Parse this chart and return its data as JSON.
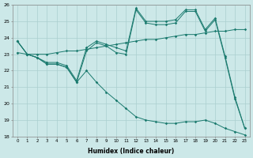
{
  "xlabel": "Humidex (Indice chaleur)",
  "ylabel": "",
  "xlim": [
    -0.5,
    23.5
  ],
  "ylim": [
    18,
    26
  ],
  "yticks": [
    18,
    19,
    20,
    21,
    22,
    23,
    24,
    25,
    26
  ],
  "xticks": [
    0,
    1,
    2,
    3,
    4,
    5,
    6,
    7,
    8,
    9,
    10,
    11,
    12,
    13,
    14,
    15,
    16,
    17,
    18,
    19,
    20,
    21,
    22,
    23
  ],
  "bg_color": "#cce8e8",
  "line_color": "#1a7a6e",
  "grid_color": "#aacfcf",
  "series": [
    [
      23.8,
      23.0,
      22.8,
      22.4,
      22.4,
      22.2,
      21.3,
      23.2,
      23.7,
      23.5,
      23.1,
      23.0,
      25.7,
      24.9,
      24.8,
      24.8,
      24.9,
      25.6,
      25.6,
      24.4,
      25.1,
      22.8,
      20.3,
      18.5
    ],
    [
      23.8,
      23.0,
      22.8,
      22.5,
      22.5,
      22.3,
      21.4,
      23.4,
      23.8,
      23.6,
      23.4,
      23.2,
      25.8,
      25.0,
      25.0,
      25.0,
      25.1,
      25.7,
      25.7,
      24.5,
      25.2,
      22.9,
      20.4,
      18.5
    ],
    [
      23.1,
      23.0,
      23.0,
      23.0,
      23.1,
      23.2,
      23.2,
      23.3,
      23.4,
      23.5,
      23.6,
      23.7,
      23.8,
      23.9,
      23.9,
      24.0,
      24.1,
      24.2,
      24.2,
      24.3,
      24.4,
      24.4,
      24.5,
      24.5
    ],
    [
      23.8,
      23.0,
      22.8,
      22.4,
      22.4,
      22.2,
      21.3,
      22.0,
      21.3,
      20.7,
      20.2,
      19.7,
      19.2,
      19.0,
      18.9,
      18.8,
      18.8,
      18.9,
      18.9,
      19.0,
      18.8,
      18.5,
      18.3,
      18.1
    ]
  ]
}
